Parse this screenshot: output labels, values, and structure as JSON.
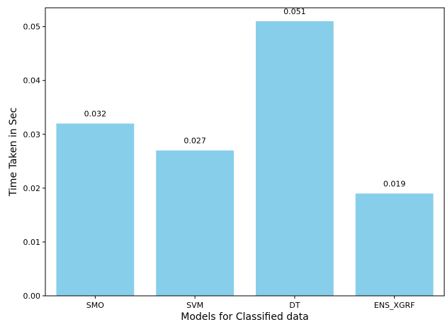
{
  "chart_data": {
    "type": "bar",
    "categories": [
      "SMO",
      "SVM",
      "DT",
      "ENS_XGRF"
    ],
    "values": [
      0.032,
      0.027,
      0.051,
      0.019
    ],
    "data_labels": [
      "0.032",
      "0.027",
      "0.051",
      "0.019"
    ],
    "xlabel": "Models for Classified data",
    "ylabel": "Time Taken in Sec",
    "ylim": [
      0,
      0.0535
    ],
    "yticks": [
      0.0,
      0.01,
      0.02,
      0.03,
      0.04,
      0.05
    ],
    "ytick_labels": [
      "0.00",
      "0.01",
      "0.02",
      "0.03",
      "0.04",
      "0.05"
    ],
    "grid": false,
    "bar_color": "#87ceeb"
  }
}
